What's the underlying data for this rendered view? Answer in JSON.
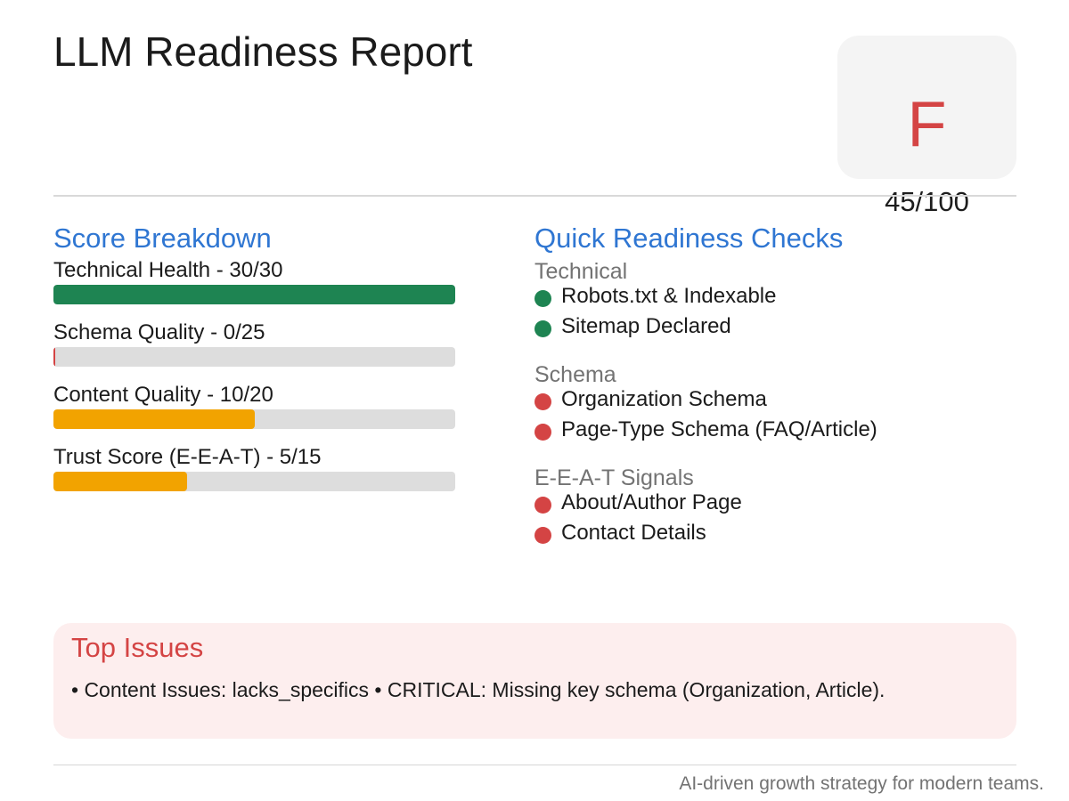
{
  "header": {
    "title": "LLM Readiness Report"
  },
  "grade_card": {
    "letter": "F",
    "score": "45/100",
    "letter_color": "#d44444"
  },
  "score_breakdown": {
    "heading": "Score Breakdown",
    "metrics": [
      {
        "label": "Technical Health - 30/30",
        "value": 30,
        "max": 30,
        "color": "#1e8452"
      },
      {
        "label": "Schema Quality - 0/25",
        "value": 0,
        "max": 25,
        "color": "#d44444"
      },
      {
        "label": "Content Quality - 10/20",
        "value": 10,
        "max": 20,
        "color": "#f2a300"
      },
      {
        "label": "Trust Score (E-E-A-T) - 5/15",
        "value": 5,
        "max": 15,
        "color": "#f2a300"
      }
    ]
  },
  "quick_checks": {
    "heading": "Quick Readiness Checks",
    "groups": [
      {
        "label": "Technical",
        "items": [
          {
            "label": "Robots.txt & Indexable",
            "status": "pass",
            "color": "#1e8452"
          },
          {
            "label": "Sitemap Declared",
            "status": "pass",
            "color": "#1e8452"
          }
        ]
      },
      {
        "label": "Schema",
        "items": [
          {
            "label": "Organization Schema",
            "status": "fail",
            "color": "#d44444"
          },
          {
            "label": "Page-Type Schema (FAQ/Article)",
            "status": "fail",
            "color": "#d44444"
          }
        ]
      },
      {
        "label": "E-E-A-T Signals",
        "items": [
          {
            "label": "About/Author Page",
            "status": "fail",
            "color": "#d44444"
          },
          {
            "label": "Contact Details",
            "status": "fail",
            "color": "#d44444"
          }
        ]
      }
    ]
  },
  "top_issues": {
    "title": "Top Issues",
    "text": "• Content Issues: lacks_specifics • CRITICAL: Missing key schema (Organization, Article)."
  },
  "footer": {
    "tagline": "AI-driven growth strategy for modern teams."
  }
}
